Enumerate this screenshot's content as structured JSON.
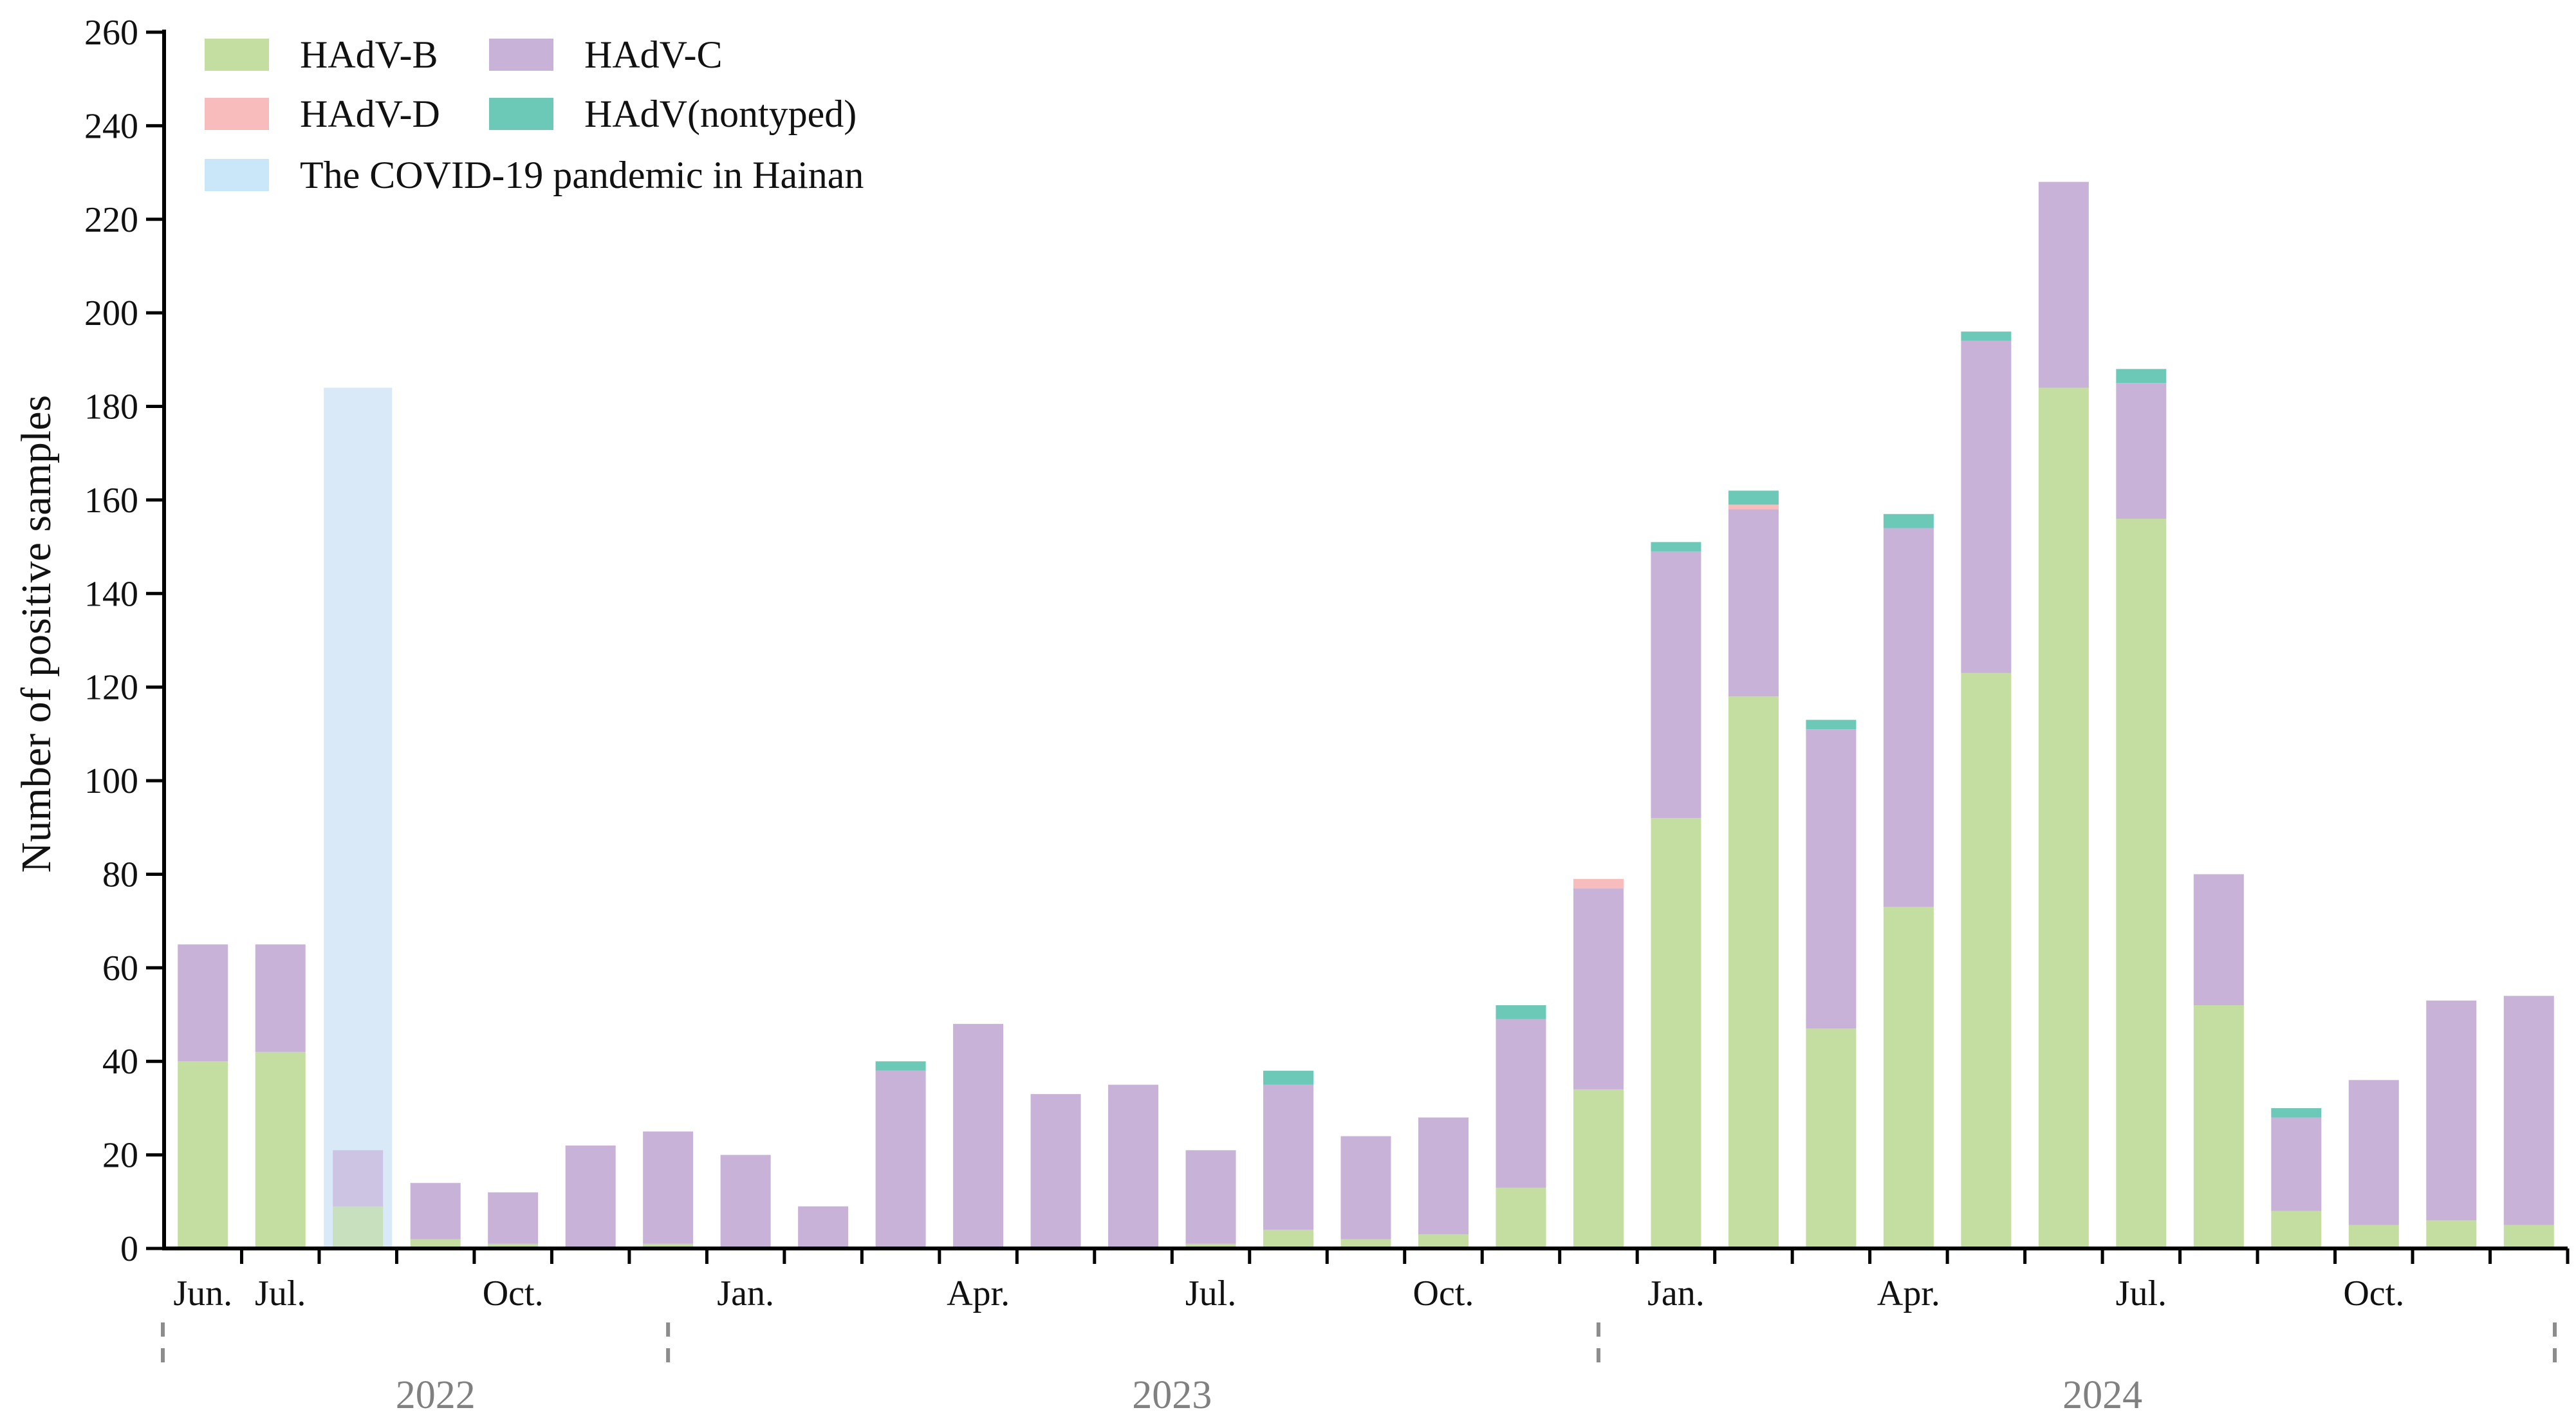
{
  "chart_data": {
    "type": "bar",
    "stacked": true,
    "title": "",
    "xlabel": "",
    "ylabel": "Number of positive samples",
    "ylim": [
      0,
      260
    ],
    "yticks": [
      0,
      20,
      40,
      60,
      80,
      100,
      120,
      140,
      160,
      180,
      200,
      220,
      240,
      260
    ],
    "categories": [
      "2022-06",
      "2022-07",
      "2022-08",
      "2022-09",
      "2022-10",
      "2022-11",
      "2022-12",
      "2023-01",
      "2023-02",
      "2023-03",
      "2023-04",
      "2023-05",
      "2023-06",
      "2023-07",
      "2023-08",
      "2023-09",
      "2023-10",
      "2023-11",
      "2023-12",
      "2024-01",
      "2024-02",
      "2024-03",
      "2024-04",
      "2024-05",
      "2024-06",
      "2024-07",
      "2024-08",
      "2024-09",
      "2024-10",
      "2024-11",
      "2024-12"
    ],
    "month_labels": [
      {
        "index": 0,
        "text": "Jun."
      },
      {
        "index": 1,
        "text": "Jul."
      },
      {
        "index": 4,
        "text": "Oct."
      },
      {
        "index": 7,
        "text": "Jan."
      },
      {
        "index": 10,
        "text": "Apr."
      },
      {
        "index": 13,
        "text": "Jul."
      },
      {
        "index": 16,
        "text": "Oct."
      },
      {
        "index": 19,
        "text": "Jan."
      },
      {
        "index": 22,
        "text": "Apr."
      },
      {
        "index": 25,
        "text": "Jul."
      },
      {
        "index": 28,
        "text": "Oct."
      }
    ],
    "years": [
      {
        "label": "2022",
        "start_index": 0,
        "end_index": 6
      },
      {
        "label": "2023",
        "start_index": 7,
        "end_index": 18
      },
      {
        "label": "2024",
        "start_index": 19,
        "end_index": 30
      }
    ],
    "series": [
      {
        "name": "HAdV-B",
        "color": "#c4dda0",
        "values": [
          40,
          42,
          9,
          2,
          1,
          0,
          1,
          0,
          0,
          0,
          0,
          0,
          0,
          1,
          4,
          2,
          3,
          13,
          34,
          92,
          118,
          47,
          73,
          123,
          184,
          156,
          52,
          8,
          5,
          6,
          5
        ]
      },
      {
        "name": "HAdV-C",
        "color": "#c8b2d8",
        "values": [
          25,
          23,
          12,
          12,
          11,
          22,
          24,
          20,
          9,
          38,
          48,
          33,
          35,
          20,
          31,
          22,
          25,
          36,
          43,
          57,
          40,
          64,
          81,
          71,
          44,
          29,
          28,
          20,
          31,
          47,
          49
        ]
      },
      {
        "name": "HAdV-D",
        "color": "#f9bcbc",
        "values": [
          0,
          0,
          0,
          0,
          0,
          0,
          0,
          0,
          0,
          0,
          0,
          0,
          0,
          0,
          0,
          0,
          0,
          0,
          2,
          0,
          1,
          0,
          0,
          0,
          0,
          0,
          0,
          0,
          0,
          0,
          0
        ]
      },
      {
        "name": "HAdV(nontyped)",
        "color": "#6cc9b8",
        "values": [
          0,
          0,
          0,
          0,
          0,
          0,
          0,
          0,
          0,
          2,
          0,
          0,
          0,
          0,
          3,
          0,
          0,
          3,
          0,
          2,
          3,
          2,
          3,
          2,
          0,
          3,
          0,
          2,
          0,
          0,
          0
        ]
      }
    ],
    "highlight": {
      "name": "The COVID-19 pandemic in Hainan",
      "color": "#d4e6f7",
      "category_index": 2,
      "top_value": 184
    },
    "legend": {
      "position": "top-left",
      "entries": [
        {
          "label": "HAdV-B",
          "color": "#c4dda0"
        },
        {
          "label": "HAdV-C",
          "color": "#c8b2d8"
        },
        {
          "label": "HAdV-D",
          "color": "#f9bcbc"
        },
        {
          "label": "HAdV(nontyped)",
          "color": "#6cc9b8"
        },
        {
          "label": "The COVID-19 pandemic in Hainan",
          "color": "#c9e7f9"
        }
      ]
    },
    "grid": false
  }
}
